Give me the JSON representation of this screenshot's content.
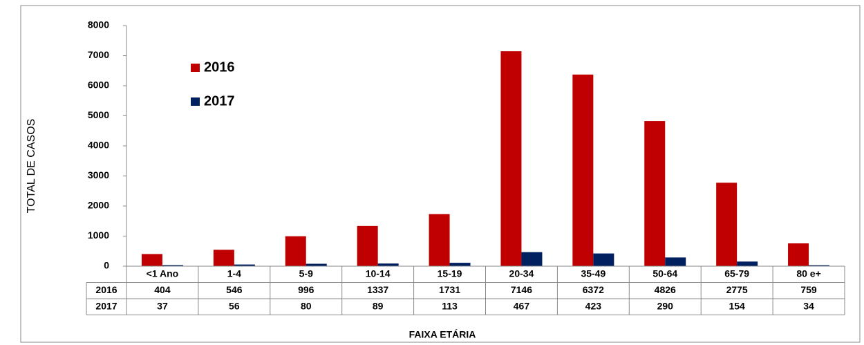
{
  "chart_data": {
    "type": "bar",
    "x_label": "FAIXA ETÁRIA",
    "y_label": "TOTAL DE CASOS",
    "categories": [
      "<1 Ano",
      "1-4",
      "5-9",
      "10-14",
      "15-19",
      "20-34",
      "35-49",
      "50-64",
      "65-79",
      "80 e+"
    ],
    "series": [
      {
        "name": "2016",
        "color": "#c00000",
        "values": [
          404,
          546,
          996,
          1337,
          1731,
          7146,
          6372,
          4826,
          2775,
          759
        ]
      },
      {
        "name": "2017",
        "color": "#002060",
        "values": [
          37,
          56,
          80,
          89,
          113,
          467,
          423,
          290,
          154,
          34
        ]
      }
    ],
    "ylim": [
      0,
      8000
    ],
    "yticks": [
      0,
      1000,
      2000,
      3000,
      4000,
      5000,
      6000,
      7000,
      8000
    ],
    "grid": false,
    "legend": "upper left"
  }
}
